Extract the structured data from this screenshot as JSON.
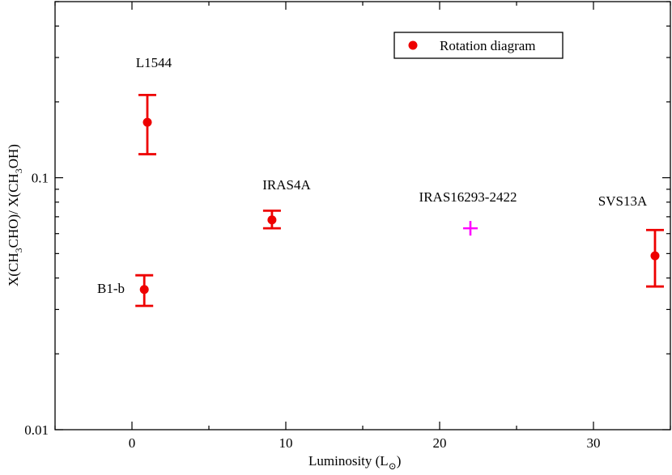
{
  "chart_data": {
    "type": "scatter",
    "xlabel": "Luminosity (L",
    "xlabel_sub": "⊙",
    "ylabel_parts": [
      "X(CH",
      "3",
      "CHO)/ X(CH",
      "3",
      "OH)"
    ],
    "xlim": [
      -5,
      35
    ],
    "ylim": [
      0.01,
      0.5
    ],
    "yscale": "log",
    "x_major_ticks": [
      0,
      10,
      20,
      30
    ],
    "x_tick_labels": [
      "0",
      "10",
      "20",
      "30"
    ],
    "y_major_ticks": [
      0.01,
      0.1
    ],
    "y_tick_labels": [
      "0.01",
      "0.1"
    ],
    "grid": false,
    "legend": {
      "position": "top-right",
      "label": "Rotation diagram"
    },
    "series": [
      {
        "name": "Rotation diagram",
        "marker": "circle",
        "color": "#ee0000",
        "points": [
          {
            "label": "L1544",
            "x": 1.0,
            "y": 0.166,
            "y_low": 0.124,
            "y_high": 0.213
          },
          {
            "label": "B1-b",
            "x": 0.8,
            "y": 0.036,
            "y_low": 0.031,
            "y_high": 0.041
          },
          {
            "label": "IRAS4A",
            "x": 9.1,
            "y": 0.068,
            "y_low": 0.063,
            "y_high": 0.074
          },
          {
            "label": "SVS13A",
            "x": 34.0,
            "y": 0.049,
            "y_low": 0.037,
            "y_high": 0.062
          }
        ]
      },
      {
        "marker": "plus",
        "color": "#ff00ff",
        "points": [
          {
            "label": "IRAS16293-2422",
            "x": 22.0,
            "y": 0.063
          }
        ]
      }
    ]
  }
}
